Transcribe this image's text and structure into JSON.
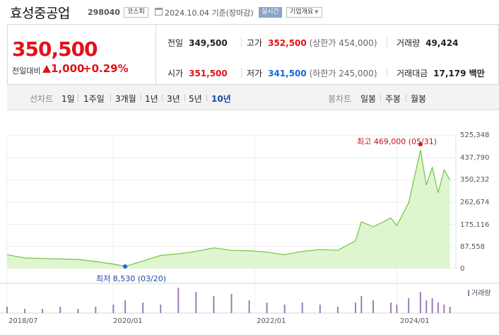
{
  "header": {
    "name": "효성중공업",
    "code": "298040",
    "market": "코스피",
    "date": "2024.10.04",
    "date_note": "기준(장마감)",
    "realtime": "실시간",
    "info_button": "기업개요"
  },
  "price": {
    "current": "350,500",
    "change_label": "전일대비",
    "change": "1,000",
    "change_pct": "+0.29%"
  },
  "stats": {
    "prev_close_label": "전일",
    "prev_close": "349,500",
    "high_label": "고가",
    "high": "352,500",
    "upper_limit": "(상한가 454,000)",
    "volume_label": "거래량",
    "volume": "49,424",
    "open_label": "시가",
    "open": "351,500",
    "low_label": "저가",
    "low": "341,500",
    "lower_limit": "(하한가 245,000)",
    "amount_label": "거래대금",
    "amount": "17,179 백만"
  },
  "tabs": {
    "line_label": "선차트",
    "line_items": [
      "1일",
      "1주일",
      "3개월",
      "1년",
      "3년",
      "5년",
      "10년"
    ],
    "active": "10년",
    "candle_label": "봉차트",
    "candle_items": [
      "일봉",
      "주봉",
      "월봉"
    ]
  },
  "chart_data": {
    "type": "area",
    "y_ticks": [
      "525,348",
      "437,790",
      "350,232",
      "262,674",
      "175,116",
      "87,558",
      "0"
    ],
    "ylim": [
      0,
      525348
    ],
    "x_ticks": [
      "2018/07",
      "2020/01",
      "2022/01",
      "2024/01"
    ],
    "high_annotation": "최고 469,000 (05/31)",
    "low_annotation": "최저 8,530 (03/20)",
    "volume_legend": "거래량",
    "series_color": "#6cc63c",
    "fill_color": "#dff5cf",
    "high_marker_color": "#e0121a",
    "low_marker_color": "#1c66d8",
    "volume_color": "#9b7bb8",
    "x": [
      "2018-07",
      "2018-10",
      "2019-01",
      "2019-04",
      "2019-07",
      "2019-10",
      "2020-01",
      "2020-03",
      "2020-06",
      "2020-09",
      "2020-12",
      "2021-03",
      "2021-06",
      "2021-09",
      "2021-12",
      "2022-03",
      "2022-06",
      "2022-09",
      "2022-12",
      "2023-03",
      "2023-06",
      "2023-07",
      "2023-09",
      "2023-12",
      "2024-01",
      "2024-03",
      "2024-05",
      "2024-06",
      "2024-07",
      "2024-08",
      "2024-09",
      "2024-10"
    ],
    "values": [
      55000,
      42000,
      40000,
      38000,
      36000,
      28000,
      18000,
      8530,
      30000,
      52000,
      58000,
      68000,
      82000,
      72000,
      70000,
      65000,
      55000,
      68000,
      75000,
      72000,
      110000,
      185000,
      165000,
      200000,
      170000,
      260000,
      469000,
      330000,
      400000,
      300000,
      390000,
      350500
    ],
    "volume": [
      3,
      2,
      2,
      3,
      2,
      3,
      4,
      6,
      5,
      4,
      12,
      10,
      8,
      9,
      6,
      5,
      4,
      5,
      4,
      3,
      5,
      8,
      6,
      5,
      4,
      7,
      10,
      6,
      7,
      5,
      4,
      3
    ]
  }
}
